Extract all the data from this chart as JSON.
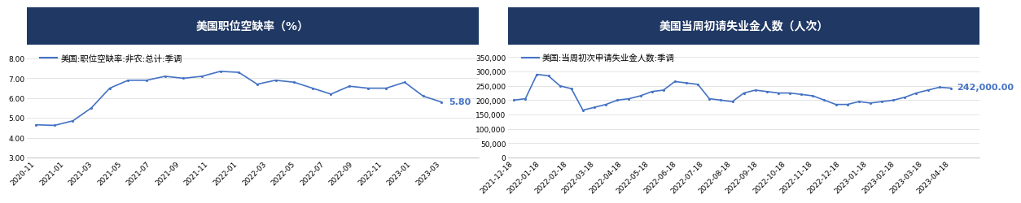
{
  "chart1": {
    "title": "美国职位空缺率（%）",
    "legend_label": "美国:职位空缺率:非农:总计:季调",
    "y_values": [
      4.65,
      4.62,
      4.85,
      5.5,
      6.5,
      6.9,
      6.9,
      7.1,
      7.0,
      7.1,
      7.35,
      7.3,
      6.7,
      6.9,
      6.8,
      6.5,
      6.2,
      6.6,
      6.5,
      6.5,
      6.8,
      6.1,
      5.8
    ],
    "x_tick_labels": [
      "2020-11",
      "2021-01",
      "2021-03",
      "2021-05",
      "2021-07",
      "2021-09",
      "2021-11",
      "2022-01",
      "2022-03",
      "2022-05",
      "2022-07",
      "2022-09",
      "2022-11",
      "2023-01",
      "2023-03"
    ],
    "ylim": [
      3.0,
      8.5
    ],
    "yticks": [
      3.0,
      4.0,
      5.0,
      6.0,
      7.0,
      8.0
    ],
    "ytick_labels": [
      "3.00",
      "4.00",
      "5.00",
      "6.00",
      "7.00",
      "8.00"
    ],
    "last_value_label": "5.80",
    "line_color": "#4472C4",
    "title_bg_color": "#1F3864",
    "title_text_color": "#FFFFFF"
  },
  "chart2": {
    "title": "美国当周初请失业金人数（人次）",
    "legend_label": "美国:当周初次申请失业金人数:季调",
    "y_values": [
      200000,
      205000,
      290000,
      285000,
      250000,
      240000,
      165000,
      175000,
      185000,
      200000,
      205000,
      215000,
      230000,
      235000,
      265000,
      260000,
      255000,
      205000,
      200000,
      195000,
      225000,
      235000,
      230000,
      225000,
      225000,
      220000,
      215000,
      200000,
      185000,
      185000,
      195000,
      190000,
      195000,
      200000,
      210000,
      225000,
      235000,
      245000,
      242000
    ],
    "x_tick_labels": [
      "2021-12-18",
      "2022-01-18",
      "2022-02-18",
      "2022-03-18",
      "2022-04-18",
      "2022-05-18",
      "2022-06-18",
      "2022-07-18",
      "2022-08-18",
      "2022-09-18",
      "2022-10-18",
      "2022-11-18",
      "2022-12-18",
      "2023-01-18",
      "2023-02-18",
      "2023-03-18",
      "2023-04-18"
    ],
    "ylim": [
      0,
      380000
    ],
    "yticks": [
      0,
      50000,
      100000,
      150000,
      200000,
      250000,
      300000,
      350000
    ],
    "last_value_label": "242,000.00",
    "line_color": "#4472C4",
    "title_bg_color": "#1F3864",
    "title_text_color": "#FFFFFF"
  },
  "bg_color": "#FFFFFF",
  "plot_bg_color": "#FFFFFF",
  "grid_color": "#D9D9D9",
  "font_size_title": 10,
  "font_size_tick": 6.5,
  "font_size_legend": 7.5,
  "font_size_label": 8
}
